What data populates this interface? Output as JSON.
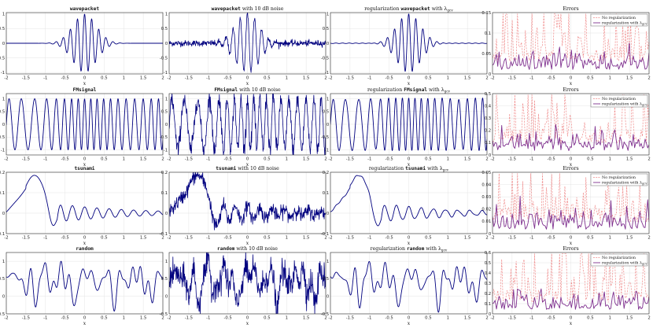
{
  "colors": {
    "signal": "#00007f",
    "reg_error": "#7e2f8e",
    "noreg_error": "#f08a8a"
  },
  "x_range": [
    -2,
    2
  ],
  "x_ticks": [
    "-2",
    "-1.5",
    "-1",
    "-0.5",
    "0",
    "0.5",
    "1",
    "1.5",
    "2"
  ],
  "xlabel": "x",
  "chart_data": [
    {
      "type": "line",
      "signal": "wavepacket",
      "panel": "clean",
      "title": "wavepacket",
      "ylim": [
        -1.05,
        1.05
      ],
      "yticks": [
        "1",
        "0.5",
        "0",
        "-0.5",
        "-1"
      ],
      "yvals": [
        1,
        0.5,
        0,
        -0.5,
        -1
      ]
    },
    {
      "type": "line",
      "signal": "wavepacket",
      "panel": "noisy",
      "title": "wavepacket with 10 dB noise",
      "ylim": [
        -1.05,
        1.05
      ],
      "yticks": [
        "1",
        "0.5",
        "0",
        "-0.5",
        "-1"
      ],
      "yvals": [
        1,
        0.5,
        0,
        -0.5,
        -1
      ]
    },
    {
      "type": "line",
      "signal": "wavepacket",
      "panel": "regularized",
      "title_prefix": "regularization ",
      "title_name": "wavepacket",
      "title_suffix": " with λ",
      "title_sub": "gcv",
      "ylim": [
        -1.05,
        1.05
      ],
      "yticks": [
        "1",
        "0.5",
        "0",
        "-0.5",
        "-1"
      ],
      "yvals": [
        1,
        0.5,
        0,
        -0.5,
        -1
      ]
    },
    {
      "type": "line",
      "signal": "wavepacket",
      "panel": "errors",
      "title": "Errors",
      "ylim": [
        0,
        0.15
      ],
      "yticks": [
        "0.15",
        "0.1",
        "0.05",
        "0"
      ],
      "yvals": [
        0.15,
        0.1,
        0.05,
        0
      ],
      "legend": [
        "No regularization",
        "regularization with λ"
      ],
      "legend_sub": "gcv",
      "series": [
        {
          "name": "No regularization",
          "style": "dashed"
        },
        {
          "name": "regularization with λgcv",
          "style": "solid"
        }
      ]
    },
    {
      "type": "line",
      "signal": "FMsignal",
      "panel": "clean",
      "title": "FMsignal",
      "ylim": [
        -1.2,
        1.2
      ],
      "yticks": [
        "1",
        "0.5",
        "0",
        "-0.5",
        "-1"
      ],
      "yvals": [
        1,
        0.5,
        0,
        -0.5,
        -1
      ]
    },
    {
      "type": "line",
      "signal": "FMsignal",
      "panel": "noisy",
      "title": "FMsignal with 10 dB noise",
      "ylim": [
        -1.2,
        1.2
      ],
      "yticks": [
        "1",
        "0.5",
        "0",
        "-0.5",
        "-1"
      ],
      "yvals": [
        1,
        0.5,
        0,
        -0.5,
        -1
      ]
    },
    {
      "type": "line",
      "signal": "FMsignal",
      "panel": "regularized",
      "title_prefix": "regularization ",
      "title_name": "FMsignal",
      "title_suffix": " with λ",
      "title_sub": "gcv",
      "ylim": [
        -1.2,
        1.2
      ],
      "yticks": [
        "1",
        "0.5",
        "0",
        "-0.5",
        "-1"
      ],
      "yvals": [
        1,
        0.5,
        0,
        -0.5,
        -1
      ]
    },
    {
      "type": "line",
      "signal": "FMsignal",
      "panel": "errors",
      "title": "Errors",
      "ylim": [
        0,
        0.5
      ],
      "yticks": [
        "0.5",
        "0.4",
        "0.3",
        "0.2",
        "0.1",
        "0"
      ],
      "yvals": [
        0.5,
        0.4,
        0.3,
        0.2,
        0.1,
        0
      ],
      "legend": [
        "No regularization",
        "regularization with λ"
      ],
      "legend_sub": "gcv",
      "series": [
        {
          "name": "No regularization",
          "style": "dashed"
        },
        {
          "name": "regularization with λgcv",
          "style": "solid"
        }
      ]
    },
    {
      "type": "line",
      "signal": "tsunami",
      "panel": "clean",
      "title": "tsunami",
      "ylim": [
        -0.1,
        0.2
      ],
      "yticks": [
        "0.2",
        "0.1",
        "0",
        "-0.1"
      ],
      "yvals": [
        0.2,
        0.1,
        0,
        -0.1
      ]
    },
    {
      "type": "line",
      "signal": "tsunami",
      "panel": "noisy",
      "title": "tsunami with 10 dB noise",
      "ylim": [
        -0.1,
        0.2
      ],
      "yticks": [
        "0.2",
        "0.1",
        "0",
        "-0.1"
      ],
      "yvals": [
        0.2,
        0.1,
        0,
        -0.1
      ]
    },
    {
      "type": "line",
      "signal": "tsunami",
      "panel": "regularized",
      "title_prefix": "regularization ",
      "title_name": "tsunami",
      "title_suffix": " with λ",
      "title_sub": "gcv",
      "ylim": [
        -0.1,
        0.2
      ],
      "yticks": [
        "0.2",
        "0.1",
        "0",
        "-0.1"
      ],
      "yvals": [
        0.2,
        0.1,
        0,
        -0.1
      ]
    },
    {
      "type": "line",
      "signal": "tsunami",
      "panel": "errors",
      "title": "Errors",
      "ylim": [
        0,
        0.05
      ],
      "yticks": [
        "0.05",
        "0.04",
        "0.03",
        "0.02",
        "0.01",
        "0"
      ],
      "yvals": [
        0.05,
        0.04,
        0.03,
        0.02,
        0.01,
        0
      ],
      "legend": [
        "No regularization",
        "regularization with λ"
      ],
      "legend_sub": "gcv",
      "series": [
        {
          "name": "No regularization",
          "style": "dashed"
        },
        {
          "name": "regularization with λgcv",
          "style": "solid"
        }
      ]
    },
    {
      "type": "line",
      "signal": "random",
      "panel": "clean",
      "title": "random",
      "ylim": [
        -0.5,
        1.25
      ],
      "yticks": [
        "1",
        "0.5",
        "0",
        "-0.5"
      ],
      "yvals": [
        1,
        0.5,
        0,
        -0.5
      ]
    },
    {
      "type": "line",
      "signal": "random",
      "panel": "noisy",
      "title": "random with 10 dB noise",
      "ylim": [
        -0.5,
        1.25
      ],
      "yticks": [
        "1",
        "0.5",
        "0",
        "-0.5"
      ],
      "yvals": [
        1,
        0.5,
        0,
        -0.5
      ]
    },
    {
      "type": "line",
      "signal": "random",
      "panel": "regularized",
      "title_prefix": "regularization ",
      "title_name": "random",
      "title_suffix": " with λ",
      "title_sub": "gcv",
      "ylim": [
        -0.5,
        1.25
      ],
      "yticks": [
        "1",
        "0.5",
        "0",
        "-0.5"
      ],
      "yvals": [
        1,
        0.5,
        0,
        -0.5
      ]
    },
    {
      "type": "line",
      "signal": "random",
      "panel": "errors",
      "title": "Errors",
      "ylim": [
        0,
        0.6
      ],
      "yticks": [
        "0.6",
        "0.5",
        "0.4",
        "0.3",
        "0.2",
        "0.1",
        "0"
      ],
      "yvals": [
        0.6,
        0.5,
        0.4,
        0.3,
        0.2,
        0.1,
        0
      ],
      "legend": [
        "No regularization",
        "regularization with λ"
      ],
      "legend_sub": "gcv",
      "series": [
        {
          "name": "No regularization",
          "style": "dashed"
        },
        {
          "name": "regularization with λgcv",
          "style": "solid"
        }
      ]
    }
  ]
}
